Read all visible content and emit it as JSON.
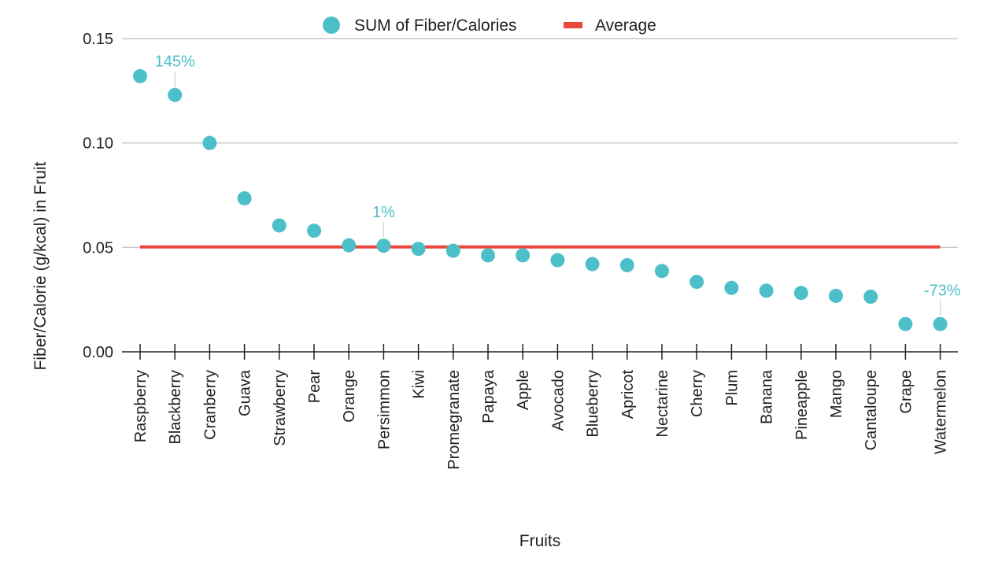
{
  "chart_data": {
    "type": "scatter",
    "title": "",
    "xlabel": "Fruits",
    "ylabel": "Fiber/Calorie (g/kcal) in Fruit",
    "ylim": [
      0,
      0.15
    ],
    "yticks": [
      "0.00",
      "0.05",
      "0.10",
      "0.15"
    ],
    "grid": true,
    "legend_position": "top-center",
    "categories": [
      "Raspberry",
      "Blackberry",
      "Cranberry",
      "Guava",
      "Strawberry",
      "Pear",
      "Orange",
      "Persimmon",
      "Kiwi",
      "Promegranate",
      "Papaya",
      "Apple",
      "Avocado",
      "Blueberry",
      "Apricot",
      "Nectarine",
      "Cherry",
      "Plum",
      "Banana",
      "Pineapple",
      "Mango",
      "Cantaloupe",
      "Grape",
      "Watermelon"
    ],
    "series": [
      {
        "name": "SUM of Fiber/Calories",
        "type": "scatter",
        "color": "#4dbfc9",
        "values": [
          0.132,
          0.123,
          0.1,
          0.0735,
          0.0605,
          0.058,
          0.051,
          0.0508,
          0.0493,
          0.0484,
          0.0462,
          0.0462,
          0.0439,
          0.042,
          0.0415,
          0.0387,
          0.0335,
          0.0306,
          0.0293,
          0.0282,
          0.0268,
          0.0264,
          0.0133,
          0.0133
        ]
      },
      {
        "name": "Average",
        "type": "line",
        "color": "#e8493a",
        "values": [
          0.0502,
          0.0502,
          0.0502,
          0.0502,
          0.0502,
          0.0502,
          0.0502,
          0.0502,
          0.0502,
          0.0502,
          0.0502,
          0.0502,
          0.0502,
          0.0502,
          0.0502,
          0.0502,
          0.0502,
          0.0502,
          0.0502,
          0.0502,
          0.0502,
          0.0502,
          0.0502,
          0.0502
        ]
      }
    ],
    "annotations": [
      {
        "category": "Blackberry",
        "text": "145%"
      },
      {
        "category": "Persimmon",
        "text": "1%"
      },
      {
        "category": "Watermelon",
        "text": "-73%"
      }
    ]
  }
}
